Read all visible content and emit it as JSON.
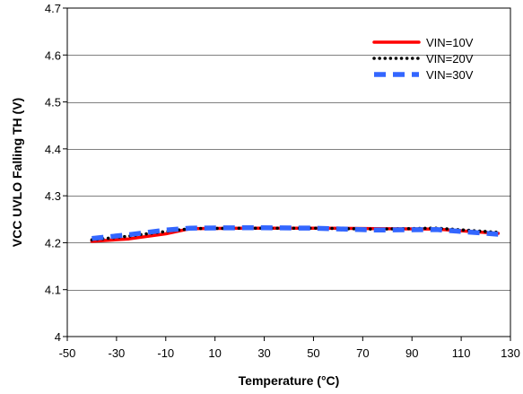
{
  "chart_data": {
    "type": "line",
    "title": "",
    "xlabel": "Temperature (°C)",
    "ylabel": "VCC UVLO Falling TH (V)",
    "xlim": [
      -50,
      130
    ],
    "ylim": [
      4.0,
      4.7
    ],
    "xticks": [
      -50,
      -30,
      -10,
      10,
      30,
      50,
      70,
      90,
      110,
      130
    ],
    "yticks": [
      4.0,
      4.1,
      4.2,
      4.3,
      4.4,
      4.5,
      4.6,
      4.7
    ],
    "xtick_labels": [
      "-50",
      "-30",
      "-10",
      "10",
      "30",
      "50",
      "70",
      "90",
      "110",
      "130"
    ],
    "ytick_labels": [
      "4",
      "4.1",
      "4.2",
      "4.3",
      "4.4",
      "4.5",
      "4.6",
      "4.7"
    ],
    "grid": "horizontal",
    "legend": "top-right",
    "series": [
      {
        "name": "VIN=10V",
        "color": "#ff0000",
        "style": "solid",
        "x": [
          -40,
          -25,
          -10,
          0,
          25,
          50,
          75,
          100,
          125
        ],
        "y": [
          4.203,
          4.208,
          4.219,
          4.23,
          4.231,
          4.231,
          4.23,
          4.229,
          4.22
        ]
      },
      {
        "name": "VIN=20V",
        "color": "#000000",
        "style": "dotted",
        "x": [
          -40,
          -25,
          -10,
          0,
          25,
          50,
          75,
          100,
          125
        ],
        "y": [
          4.206,
          4.214,
          4.224,
          4.23,
          4.231,
          4.231,
          4.229,
          4.231,
          4.222
        ]
      },
      {
        "name": "VIN=30V",
        "color": "#3366ff",
        "style": "dashed",
        "x": [
          -40,
          -25,
          -10,
          0,
          25,
          50,
          75,
          100,
          125
        ],
        "y": [
          4.209,
          4.217,
          4.227,
          4.231,
          4.232,
          4.231,
          4.227,
          4.228,
          4.218
        ]
      }
    ]
  }
}
